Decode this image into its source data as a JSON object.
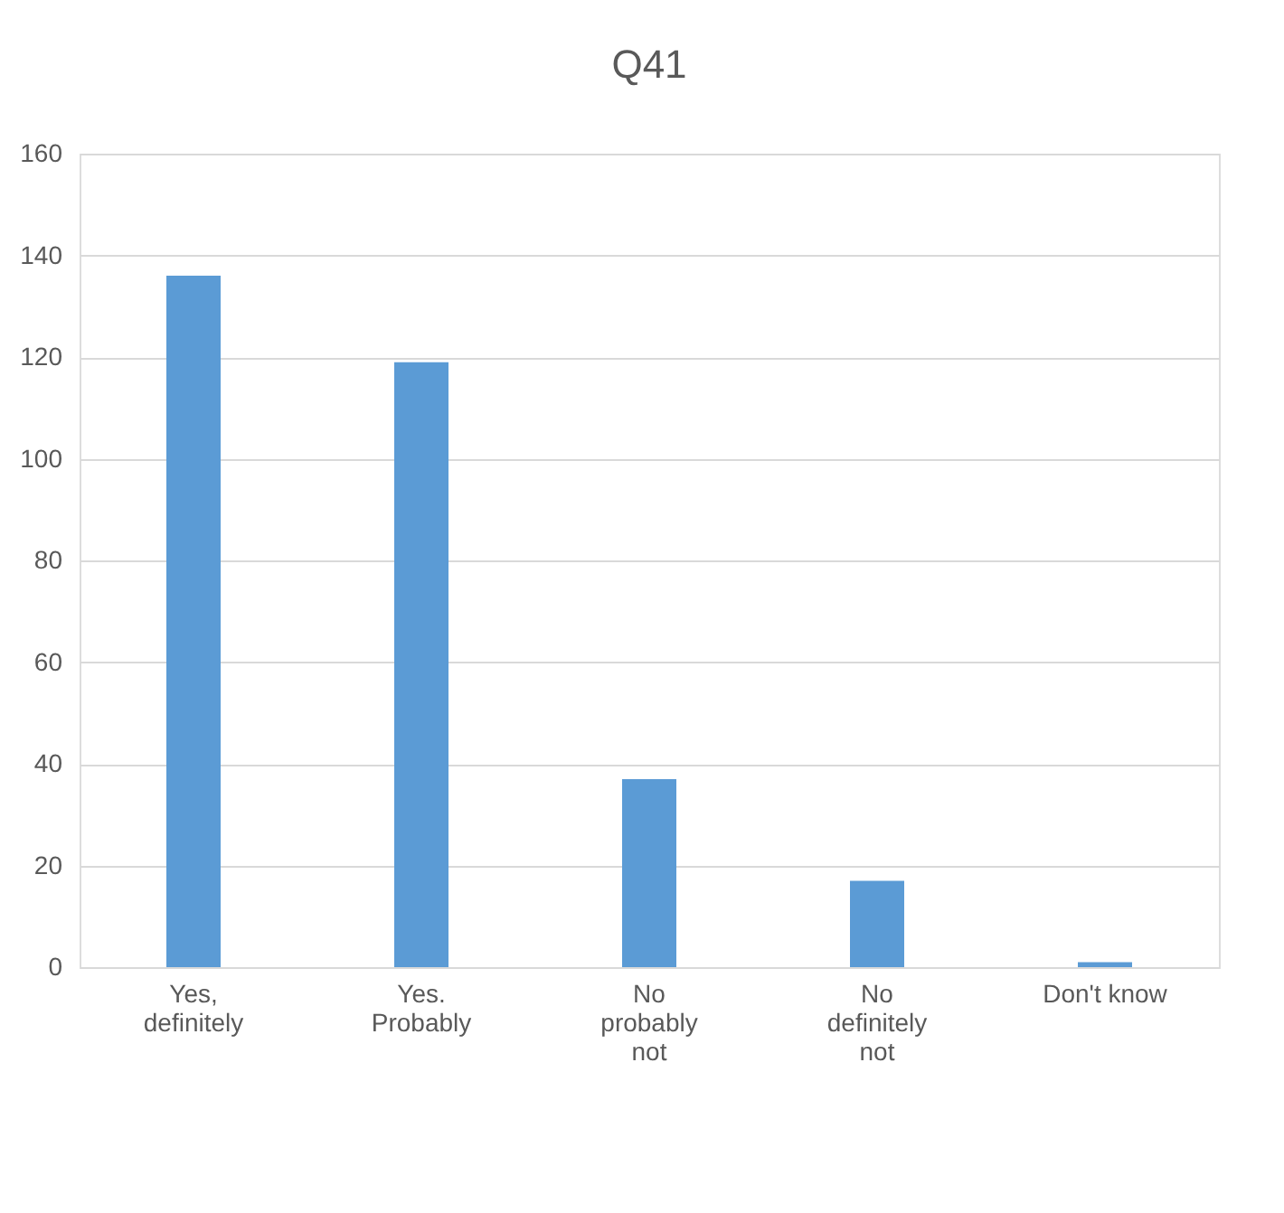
{
  "chart_data": {
    "type": "bar",
    "title": "Q41",
    "categories": [
      "Yes, definitely",
      "Yes. Probably",
      "No probably not",
      "No definitely not",
      "Don't know"
    ],
    "values": [
      136,
      119,
      37,
      17,
      1
    ],
    "color": "#5b9bd5",
    "ylim": [
      0,
      160
    ],
    "yticks": [
      0,
      20,
      40,
      60,
      80,
      100,
      120,
      140,
      160
    ],
    "grid": "y"
  }
}
